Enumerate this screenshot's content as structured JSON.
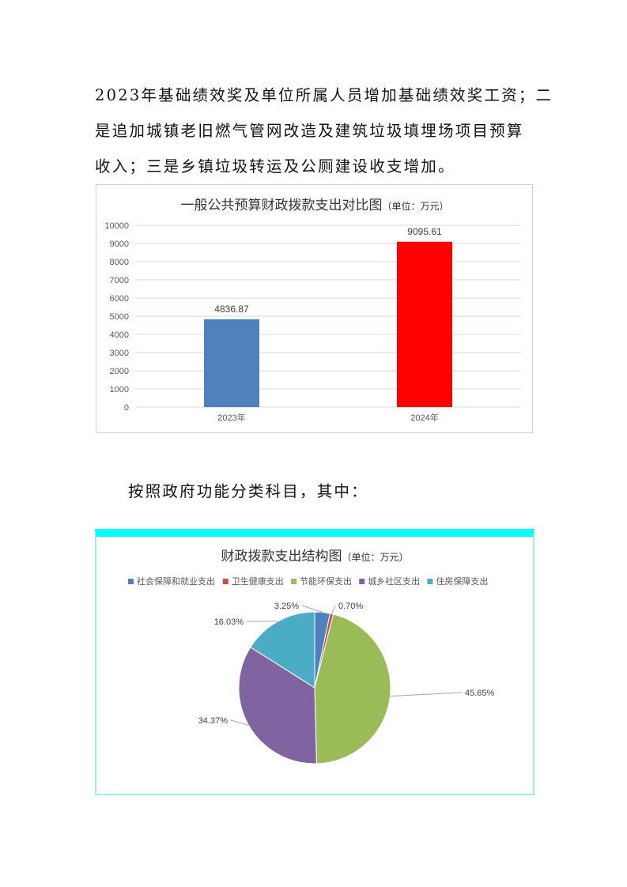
{
  "paragraph_lines": [
    "2023年基础绩效奖及单位所属人员增加基础绩效奖工资；二",
    "是追加城镇老旧燃气管网改造及建筑垃圾填埋场项目预算",
    "收入；三是乡镇垃圾转运及公厕建设收支增加。"
  ],
  "intro_line": "按照政府功能分类科目，其中：",
  "chart_data": [
    {
      "type": "bar",
      "title": "一般公共预算财政拨款支出对比图",
      "unit": "（单位：万元）",
      "categories": [
        "2023年",
        "2024年"
      ],
      "values": [
        4836.87,
        9095.61
      ],
      "data_labels": [
        "4836.87",
        "9095.61"
      ],
      "colors": [
        "#4f81bd",
        "#ff0000"
      ],
      "ylim": [
        0,
        10000
      ],
      "yticks": [
        "0",
        "1000",
        "2000",
        "3000",
        "4000",
        "5000",
        "6000",
        "7000",
        "8000",
        "9000",
        "10000"
      ],
      "grid": true
    },
    {
      "type": "pie",
      "title": "财政拨款支出结构图",
      "unit": "（单位：万元）",
      "legend_position": "top",
      "categories": [
        "社会保障和就业支出",
        "卫生健康支出",
        "节能环保支出",
        "城乡社区支出",
        "住房保障支出"
      ],
      "values": [
        3.25,
        0.7,
        45.65,
        34.37,
        16.03
      ],
      "data_labels": [
        "3.25%",
        "0.70%",
        "45.65%",
        "34.37%",
        "16.03%"
      ],
      "colors": [
        "#4f81bd",
        "#c0504d",
        "#9bbb59",
        "#8064a2",
        "#4bacc6"
      ],
      "border_accent": "#00ffff"
    }
  ]
}
